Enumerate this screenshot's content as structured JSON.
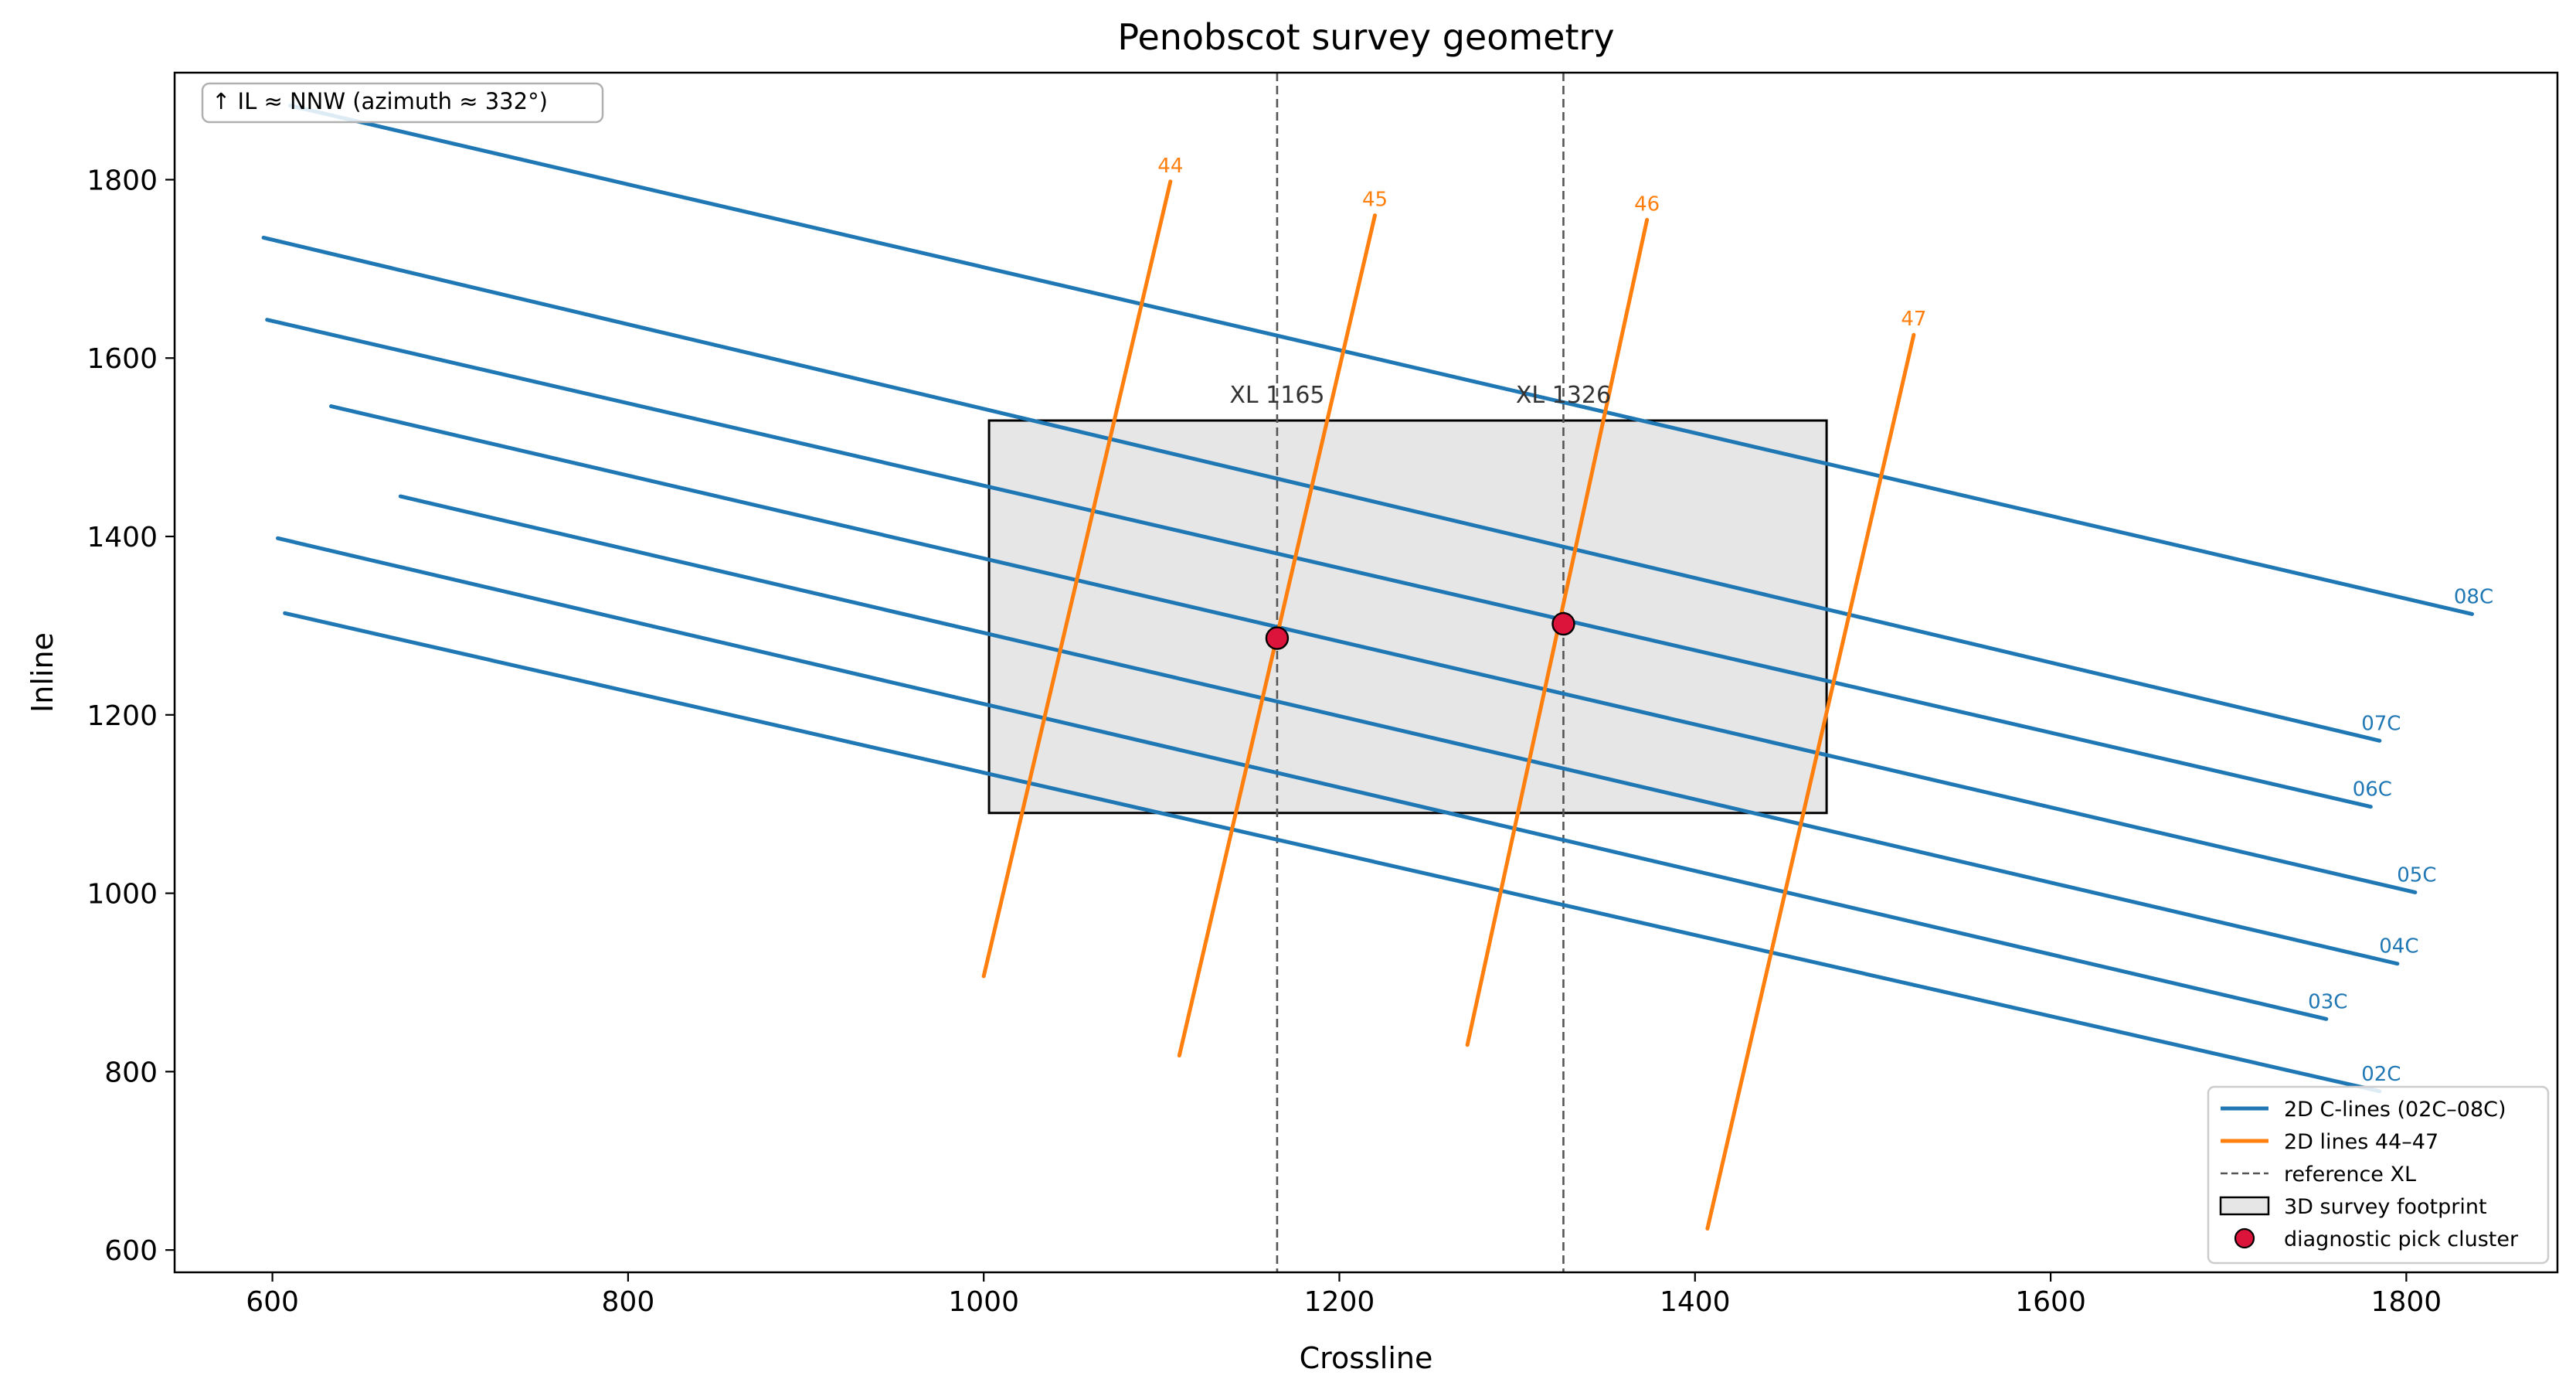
{
  "chart_data": {
    "type": "line",
    "title": "Penobscot survey geometry",
    "xlabel": "Crossline",
    "ylabel": "Inline",
    "xlim": [
      545,
      1885
    ],
    "ylim": [
      575,
      1920
    ],
    "xticks": [
      600,
      800,
      1000,
      1200,
      1400,
      1600,
      1800
    ],
    "yticks": [
      600,
      800,
      1000,
      1200,
      1400,
      1600,
      1800
    ],
    "grid": false,
    "legend_position": "lower-right",
    "annotation": "↑ IL ≈ NNW (azimuth ≈ 332°)",
    "colors": {
      "c_lines": "#1f77b4",
      "lines_44_47": "#ff7f0e",
      "reference_xl": "#555555",
      "footprint_fill": "#e6e6e6",
      "footprint_edge": "#000000",
      "picks": "#dc143c"
    },
    "c_lines": [
      {
        "name": "02C",
        "x": [
          607,
          1785
        ],
        "y": [
          1314,
          778
        ]
      },
      {
        "name": "03C",
        "x": [
          603,
          1755
        ],
        "y": [
          1398,
          859
        ]
      },
      {
        "name": "04C",
        "x": [
          672,
          1795
        ],
        "y": [
          1445,
          921
        ]
      },
      {
        "name": "05C",
        "x": [
          633,
          1805
        ],
        "y": [
          1546,
          1001
        ]
      },
      {
        "name": "06C",
        "x": [
          597,
          1780
        ],
        "y": [
          1643,
          1097
        ]
      },
      {
        "name": "07C",
        "x": [
          595,
          1785
        ],
        "y": [
          1735,
          1171
        ]
      },
      {
        "name": "08C",
        "x": [
          610,
          1837
        ],
        "y": [
          1883,
          1313
        ]
      }
    ],
    "lines_44_47": [
      {
        "name": "44",
        "x": [
          1000,
          1105
        ],
        "y": [
          907,
          1798
        ]
      },
      {
        "name": "45",
        "x": [
          1110,
          1220
        ],
        "y": [
          818,
          1760
        ]
      },
      {
        "name": "46",
        "x": [
          1272,
          1373
        ],
        "y": [
          830,
          1755
        ]
      },
      {
        "name": "47",
        "x": [
          1407,
          1523
        ],
        "y": [
          624,
          1626
        ]
      }
    ],
    "reference_xl": [
      {
        "label": "XL 1165",
        "x": 1165
      },
      {
        "label": "XL 1326",
        "x": 1326
      }
    ],
    "survey_footprint": {
      "x": [
        1003,
        1474
      ],
      "y": [
        1090,
        1530
      ]
    },
    "pick_cluster": [
      {
        "x": 1165,
        "y": 1286
      },
      {
        "x": 1326,
        "y": 1302
      }
    ],
    "legend": [
      {
        "label": "2D C-lines (02C–08C)",
        "kind": "line",
        "color": "#1f77b4",
        "dash": false
      },
      {
        "label": "2D lines 44–47",
        "kind": "line",
        "color": "#ff7f0e",
        "dash": false
      },
      {
        "label": "reference XL",
        "kind": "line",
        "color": "#555555",
        "dash": true
      },
      {
        "label": "3D survey footprint",
        "kind": "patch",
        "color": "#e6e6e6",
        "dash": false
      },
      {
        "label": "diagnostic pick cluster",
        "kind": "marker",
        "color": "#dc143c",
        "dash": false
      }
    ]
  }
}
